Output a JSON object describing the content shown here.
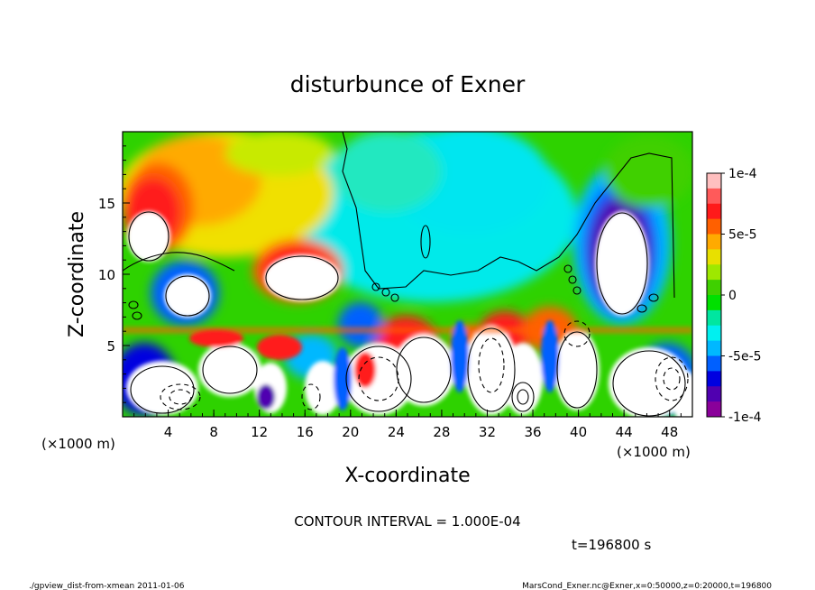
{
  "chart_data": {
    "type": "heatmap",
    "title": "disturbunce of Exner",
    "xlabel": "X-coordinate",
    "ylabel": "Z-coordinate",
    "x_unit_left": "(×1000 m)",
    "x_unit_right": "(×1000 m)",
    "xlim": [
      0,
      50
    ],
    "ylim": [
      0,
      20
    ],
    "x_ticks": [
      4,
      8,
      12,
      16,
      20,
      24,
      28,
      32,
      36,
      40,
      44,
      48
    ],
    "y_ticks": [
      5,
      10,
      15
    ],
    "colorbar": {
      "range": [
        -0.0001,
        0.0001
      ],
      "labels": [
        {
          "value": 0.0001,
          "text": "1e-4"
        },
        {
          "value": 5e-05,
          "text": "5e-5"
        },
        {
          "value": 0,
          "text": "0"
        },
        {
          "value": -5e-05,
          "text": "-5e-5"
        },
        {
          "value": -0.0001,
          "text": "-1e-4"
        }
      ],
      "colors": [
        "#ffbfbf",
        "#ff5a5a",
        "#ff1a1a",
        "#ff6000",
        "#ffaa00",
        "#e8e000",
        "#9ee800",
        "#3fd000",
        "#00e000",
        "#00e6a0",
        "#00f0f0",
        "#00b8ff",
        "#0060ff",
        "#0000e0",
        "#5000b0",
        "#8a009a"
      ]
    },
    "contour_interval": "CONTOUR INTERVAL = 1.000E-04",
    "time_label": "t=196800 s",
    "features": [
      {
        "kind": "positive",
        "x": 2.5,
        "z": 14.5,
        "rx": 3.0,
        "rz": 3.5
      },
      {
        "kind": "positive",
        "x": 9.0,
        "z": 15.0,
        "rx": 6.0,
        "rz": 4.0
      },
      {
        "kind": "positive",
        "x": 16.0,
        "z": 11.0,
        "rx": 3.2,
        "rz": 2.6
      },
      {
        "kind": "negative",
        "x": 45.0,
        "z": 12.0,
        "rx": 2.8,
        "rz": 5.0
      },
      {
        "kind": "negative",
        "x": 6.0,
        "z": 8.5,
        "rx": 2.4,
        "rz": 2.4
      },
      {
        "kind": "negative",
        "x": 27.0,
        "z": 15.0,
        "rx": 9.0,
        "rz": 4.5
      }
    ]
  },
  "footer": {
    "left": "./gpview_dist-from-xmean  2011-01-06",
    "right": "MarsCond_Exner.nc@Exner,x=0:50000,z=0:20000,t=196800"
  }
}
